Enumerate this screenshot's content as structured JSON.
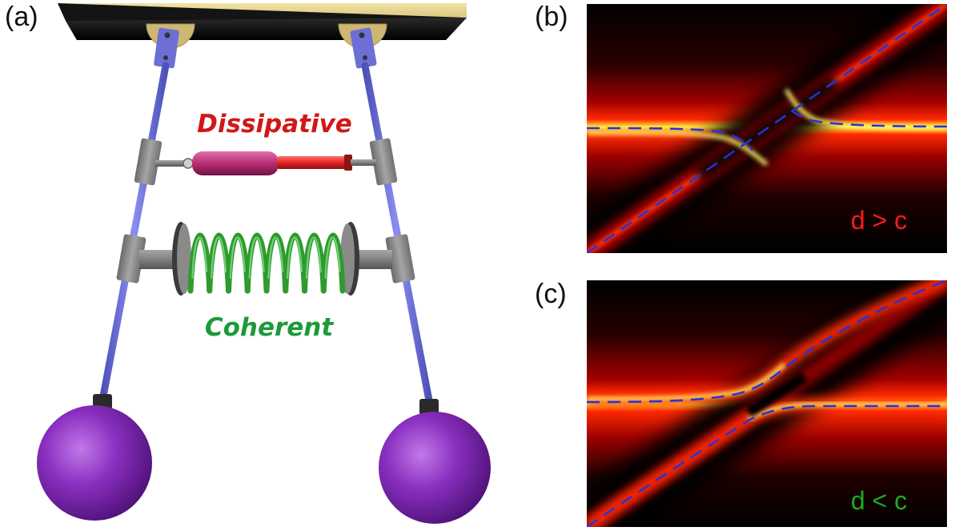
{
  "panels": {
    "a": {
      "label": "(a)",
      "dissipative_text": "Dissipative",
      "coherent_text": "Coherent"
    },
    "b": {
      "label": "(b)",
      "condition_text": "d > c"
    },
    "c": {
      "label": "(c)",
      "condition_text": "d < c"
    }
  },
  "colors": {
    "ceiling": "#e3cf86",
    "rod": "#6b6fd6",
    "bob": "#8a2fc0",
    "damper": "#c4367a",
    "piston": "#e83030",
    "spring": "#3cb83c",
    "dissipative_text": "#d01818",
    "coherent_text": "#1c9a3a",
    "curve": "#2233dd",
    "condition_b": "#ff1a1a",
    "condition_c": "#1faa1f"
  }
}
